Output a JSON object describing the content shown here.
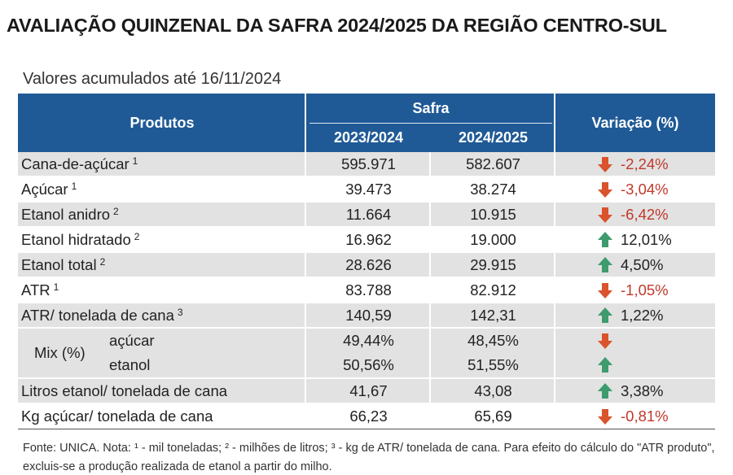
{
  "title": "AVALIAÇÃO QUINZENAL DA SAFRA 2024/2025 DA REGIÃO CENTRO-SUL",
  "subtitle": "Valores acumulados até 16/11/2024",
  "header": {
    "produtos": "Produtos",
    "safra": "Safra",
    "year1": "2023/2024",
    "year2": "2024/2025",
    "variacao": "Variação (%)"
  },
  "rows": [
    {
      "label": "Cana-de-açúcar",
      "sup": "1",
      "v1": "595.971",
      "v2": "582.607",
      "var": "-2,24%",
      "dir": "down"
    },
    {
      "label": "Açúcar",
      "sup": "1",
      "v1": "39.473",
      "v2": "38.274",
      "var": "-3,04%",
      "dir": "down"
    },
    {
      "label": "Etanol anidro",
      "sup": "2",
      "v1": "11.664",
      "v2": "10.915",
      "var": "-6,42%",
      "dir": "down"
    },
    {
      "label": "Etanol hidratado",
      "sup": "2",
      "v1": "16.962",
      "v2": "19.000",
      "var": "12,01%",
      "dir": "up"
    },
    {
      "label": "Etanol total",
      "sup": "2",
      "v1": "28.626",
      "v2": "29.915",
      "var": "4,50%",
      "dir": "up"
    },
    {
      "label": "ATR",
      "sup": "1",
      "v1": "83.788",
      "v2": "82.912",
      "var": "-1,05%",
      "dir": "down"
    },
    {
      "label": "ATR/ tonelada de cana",
      "sup": "3",
      "v1": "140,59",
      "v2": "142,31",
      "var": "1,22%",
      "dir": "up"
    }
  ],
  "mix": {
    "label": "Mix (%)",
    "acucar": {
      "label": "açúcar",
      "v1": "49,44%",
      "v2": "48,45%",
      "dir": "down"
    },
    "etanol": {
      "label": "etanol",
      "v1": "50,56%",
      "v2": "51,55%",
      "dir": "up"
    }
  },
  "rows2": [
    {
      "label": "Litros etanol/ tonelada de cana",
      "v1": "41,67",
      "v2": "43,08",
      "var": "3,38%",
      "dir": "up"
    },
    {
      "label": "Kg açúcar/ tonelada de cana",
      "v1": "66,23",
      "v2": "65,69",
      "var": "-0,81%",
      "dir": "down"
    }
  ],
  "footnote": "Fonte: UNICA. Nota: ¹ - mil toneladas; ² - milhões de litros; ³ - kg de ATR/ tonelada de cana. Para efeito do cálculo do \"ATR produto\", excluis-se a produção realizada de etanol a partir do milho.",
  "colors": {
    "header": "#1f5a96",
    "shade": "#e2e2e2",
    "down": "#d9532b",
    "up": "#3d9b6e"
  },
  "icons": {
    "down": "arrow-down-icon",
    "up": "arrow-up-icon"
  }
}
